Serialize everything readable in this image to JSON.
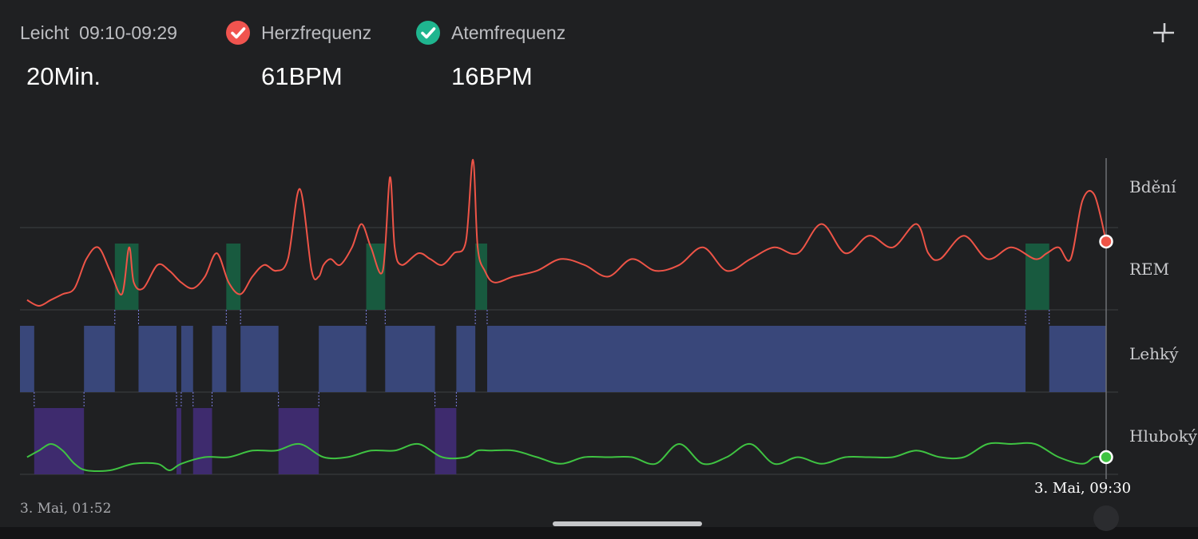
{
  "header": {
    "stage_label": "Leicht",
    "time_range": "09:10-09:29",
    "duration": "20Min.",
    "heart_rate": {
      "label": "Herzfrequenz",
      "value": "61BPM",
      "color": "#f0544f",
      "icon": "check-icon"
    },
    "breath_rate": {
      "label": "Atemfrequenz",
      "value": "16BPM",
      "color": "#1fb58f",
      "icon": "check-icon"
    },
    "collapse_icon": "collapse-icon"
  },
  "chart_data": {
    "type": "line",
    "x_start": "3. Mai, 01:52",
    "x_end": "3. Mai, 09:30",
    "stage_labels": [
      "Bdění",
      "REM",
      "Lehký",
      "Hluboký"
    ],
    "colors": {
      "rem": "#185a3f",
      "light": "#39477a",
      "deep": "#3e2b6e",
      "heart": "#ee5447",
      "breath": "#3fc342",
      "grid": "#3e3f43"
    },
    "stage_segments": [
      [
        "03.05.2022 01:52",
        "03.05.2022 01:58",
        "light"
      ],
      [
        "03.05.2022 01:58",
        "03.05.2022 02:19",
        "deep"
      ],
      [
        "03.05.2022 02:19",
        "03.05.2022 02:32",
        "light"
      ],
      [
        "03.05.2022 02:32",
        "03.05.2022 02:42",
        "rem"
      ],
      [
        "03.05.2022 02:42",
        "03.05.2022 02:58",
        "light"
      ],
      [
        "03.05.2022 02:58",
        "03.05.2022 03:00",
        "deep"
      ],
      [
        "03.05.2022 03:00",
        "03.05.2022 03:05",
        "light"
      ],
      [
        "03.05.2022 03:05",
        "03.05.2022 03:13",
        "deep"
      ],
      [
        "03.05.2022 03:13",
        "03.05.2022 03:19",
        "light"
      ],
      [
        "03.05.2022 03:19",
        "03.05.2022 03:25",
        "rem"
      ],
      [
        "03.05.2022 03:25",
        "03.05.2022 03:41",
        "light"
      ],
      [
        "03.05.2022 03:41",
        "03.05.2022 03:58",
        "deep"
      ],
      [
        "03.05.2022 03:58",
        "03.05.2022 04:18",
        "light"
      ],
      [
        "03.05.2022 04:18",
        "03.05.2022 04:26",
        "rem"
      ],
      [
        "03.05.2022 04:26",
        "03.05.2022 04:47",
        "light"
      ],
      [
        "03.05.2022 04:47",
        "03.05.2022 04:56",
        "deep"
      ],
      [
        "03.05.2022 04:56",
        "03.05.2022 05:04",
        "light"
      ],
      [
        "03.05.2022 05:04",
        "03.05.2022 05:09",
        "rem"
      ],
      [
        "03.05.2022 05:09",
        "03.05.2022 08:56",
        "light"
      ],
      [
        "03.05.2022 08:56",
        "03.05.2022 09:06",
        "rem"
      ],
      [
        "03.05.2022 09:06",
        "03.05.2022 09:30",
        "light"
      ]
    ],
    "heart_rate_series": {
      "name": "Herzfrequenz",
      "x": [
        "03.05.2022 01:55",
        "03.05.2022 02:00",
        "03.05.2022 02:05",
        "03.05.2022 02:10",
        "03.05.2022 02:15",
        "03.05.2022 02:20",
        "03.05.2022 02:25",
        "03.05.2022 02:30",
        "03.05.2022 02:35",
        "03.05.2022 02:38",
        "03.05.2022 02:40",
        "03.05.2022 02:44",
        "03.05.2022 02:50",
        "03.05.2022 02:55",
        "03.05.2022 03:00",
        "03.05.2022 03:05",
        "03.05.2022 03:10",
        "03.05.2022 03:15",
        "03.05.2022 03:20",
        "03.05.2022 03:25",
        "03.05.2022 03:30",
        "03.05.2022 03:35",
        "03.05.2022 03:40",
        "03.05.2022 03:45",
        "03.05.2022 03:50",
        "03.05.2022 03:55",
        "03.05.2022 03:58",
        "03.05.2022 04:00",
        "03.05.2022 04:03",
        "03.05.2022 04:07",
        "03.05.2022 04:12",
        "03.05.2022 04:16",
        "03.05.2022 04:20",
        "03.05.2022 04:25",
        "03.05.2022 04:28",
        "03.05.2022 04:30",
        "03.05.2022 04:33",
        "03.05.2022 04:40",
        "03.05.2022 04:45",
        "03.05.2022 04:50",
        "03.05.2022 04:55",
        "03.05.2022 05:00",
        "03.05.2022 05:03",
        "03.05.2022 05:05",
        "03.05.2022 05:08",
        "03.05.2022 05:12",
        "03.05.2022 05:20",
        "03.05.2022 05:30",
        "03.05.2022 05:40",
        "03.05.2022 05:50",
        "03.05.2022 06:00",
        "03.05.2022 06:10",
        "03.05.2022 06:20",
        "03.05.2022 06:30",
        "03.05.2022 06:40",
        "03.05.2022 06:50",
        "03.05.2022 07:00",
        "03.05.2022 07:10",
        "03.05.2022 07:20",
        "03.05.2022 07:30",
        "03.05.2022 07:40",
        "03.05.2022 07:50",
        "03.05.2022 08:00",
        "03.05.2022 08:10",
        "03.05.2022 08:15",
        "03.05.2022 08:20",
        "03.05.2022 08:30",
        "03.05.2022 08:40",
        "03.05.2022 08:50",
        "03.05.2022 09:00",
        "03.05.2022 09:05",
        "03.05.2022 09:10",
        "03.05.2022 09:15",
        "03.05.2022 09:20",
        "03.05.2022 09:25",
        "03.05.2022 09:30"
      ],
      "y": [
        51,
        50,
        51,
        52,
        53,
        58,
        60,
        56,
        52,
        60,
        54,
        53,
        57,
        56,
        54,
        53,
        55,
        59,
        54,
        52,
        55,
        57,
        56,
        58,
        70,
        56,
        55,
        57,
        58,
        57,
        60,
        64,
        60,
        56,
        72,
        60,
        57,
        59,
        58,
        57,
        59,
        61,
        75,
        60,
        56,
        54,
        55,
        56,
        58,
        57,
        55,
        58,
        56,
        57,
        60,
        56,
        58,
        60,
        59,
        64,
        59,
        62,
        60,
        64,
        59,
        58,
        62,
        58,
        60,
        58,
        59,
        60,
        58,
        68,
        69,
        61
      ]
    },
    "breath_rate_series": {
      "name": "Atemfrequenz",
      "x": [
        "03.05.2022 01:55",
        "03.05.2022 02:00",
        "03.05.2022 02:05",
        "03.05.2022 02:10",
        "03.05.2022 02:15",
        "03.05.2022 02:20",
        "03.05.2022 02:30",
        "03.05.2022 02:40",
        "03.05.2022 02:50",
        "03.05.2022 02:55",
        "03.05.2022 03:00",
        "03.05.2022 03:10",
        "03.05.2022 03:20",
        "03.05.2022 03:30",
        "03.05.2022 03:40",
        "03.05.2022 03:50",
        "03.05.2022 04:00",
        "03.05.2022 04:10",
        "03.05.2022 04:20",
        "03.05.2022 04:30",
        "03.05.2022 04:40",
        "03.05.2022 04:50",
        "03.05.2022 05:00",
        "03.05.2022 05:05",
        "03.05.2022 05:10",
        "03.05.2022 05:20",
        "03.05.2022 05:30",
        "03.05.2022 05:40",
        "03.05.2022 05:50",
        "03.05.2022 06:00",
        "03.05.2022 06:10",
        "03.05.2022 06:20",
        "03.05.2022 06:30",
        "03.05.2022 06:40",
        "03.05.2022 06:50",
        "03.05.2022 07:00",
        "03.05.2022 07:10",
        "03.05.2022 07:20",
        "03.05.2022 07:30",
        "03.05.2022 07:40",
        "03.05.2022 07:50",
        "03.05.2022 08:00",
        "03.05.2022 08:10",
        "03.05.2022 08:20",
        "03.05.2022 08:30",
        "03.05.2022 08:40",
        "03.05.2022 08:50",
        "03.05.2022 09:00",
        "03.05.2022 09:10",
        "03.05.2022 09:20",
        "03.05.2022 09:25",
        "03.05.2022 09:30"
      ],
      "y": [
        14,
        15,
        16,
        15,
        13,
        12,
        12,
        13,
        13,
        12,
        13,
        14,
        14,
        15,
        15,
        16,
        14,
        14,
        15,
        15,
        16,
        14,
        14,
        15,
        15,
        15,
        14,
        13,
        14,
        14,
        14,
        13,
        16,
        13,
        14,
        16,
        13,
        14,
        13,
        14,
        14,
        14,
        15,
        14,
        14,
        16,
        16,
        16,
        14,
        13,
        14,
        14
      ]
    }
  }
}
